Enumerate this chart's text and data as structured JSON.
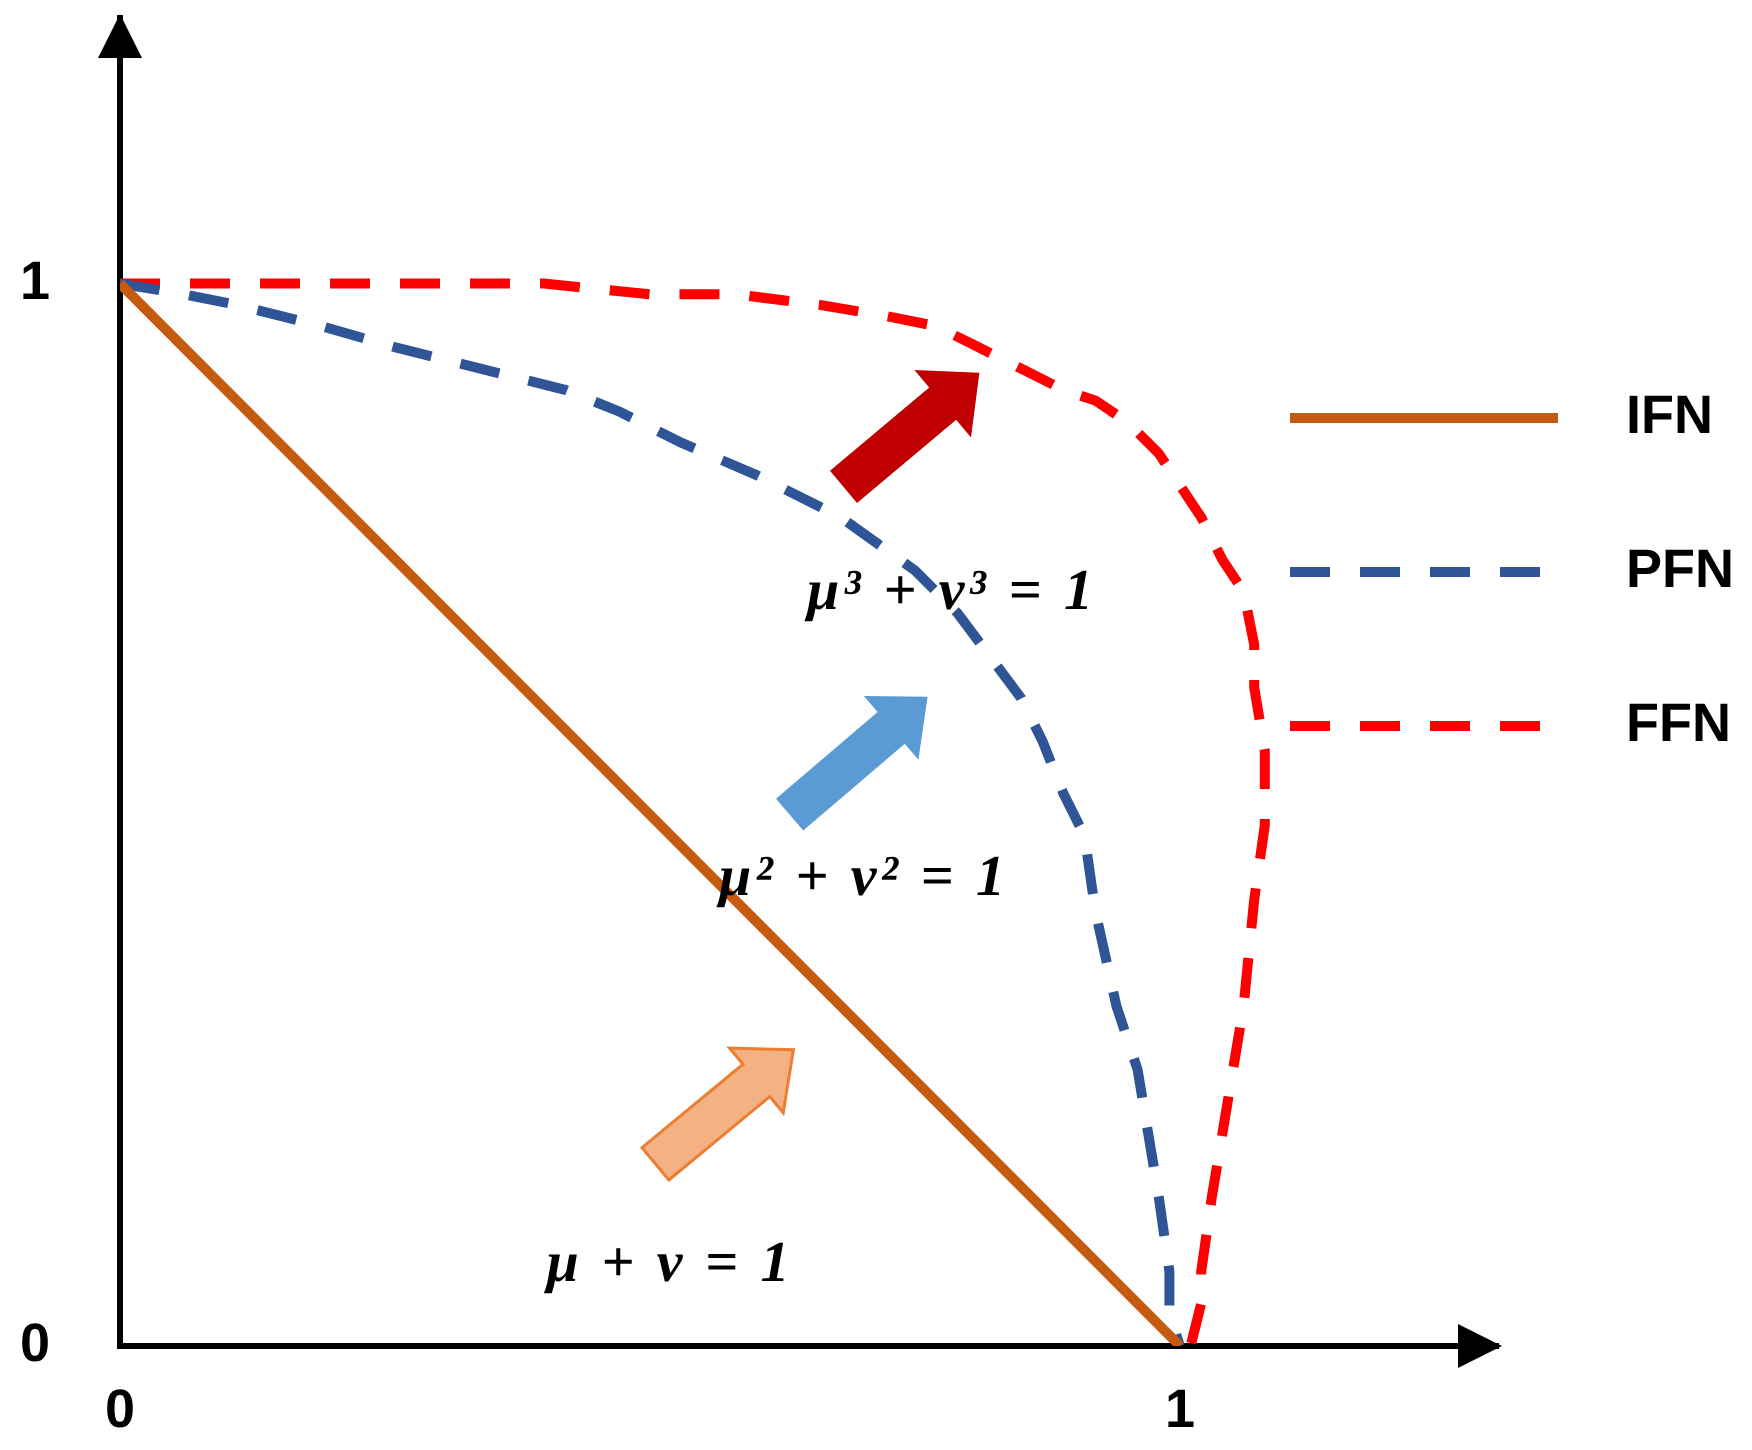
{
  "chart_data": {
    "type": "line",
    "series": [
      {
        "name": "IFN",
        "color": "#c55a11",
        "line_style": "solid",
        "x": [
          0,
          1
        ],
        "values": [
          1,
          0
        ]
      },
      {
        "name": "PFN",
        "color": "#2f5597",
        "line_style": "dashed",
        "x": [
          0,
          0.06,
          0.11,
          0.19,
          0.26,
          0.34,
          0.42,
          0.47,
          0.53,
          0.6,
          0.68,
          0.75,
          0.79,
          0.82,
          0.85,
          0.87,
          0.89,
          0.91,
          0.92,
          0.94,
          0.96,
          0.97,
          0.98,
          0.99,
          0.99,
          1.0
        ],
        "values": [
          1,
          0.99,
          0.98,
          0.96,
          0.94,
          0.92,
          0.9,
          0.88,
          0.85,
          0.82,
          0.78,
          0.73,
          0.69,
          0.65,
          0.61,
          0.57,
          0.52,
          0.48,
          0.41,
          0.32,
          0.26,
          0.2,
          0.14,
          0.07,
          0.03,
          0
        ]
      },
      {
        "name": "FFN",
        "color": "#ff0000",
        "line_style": "dashed",
        "x": [
          0,
          0.1,
          0.2,
          0.3,
          0.4,
          0.5,
          0.58,
          0.66,
          0.72,
          0.77,
          0.81,
          0.85,
          0.89,
          0.92,
          0.95,
          0.98,
          1.0,
          1.02,
          1.04,
          1.06,
          1.07,
          1.07,
          1.08,
          1.08,
          1.07,
          1.06,
          1.05,
          1.04,
          1.03,
          1.02,
          1.02,
          1.01
        ],
        "values": [
          1,
          1.0,
          1.0,
          1.0,
          1.0,
          0.99,
          0.99,
          0.98,
          0.97,
          0.96,
          0.94,
          0.92,
          0.9,
          0.89,
          0.87,
          0.84,
          0.81,
          0.78,
          0.74,
          0.71,
          0.66,
          0.62,
          0.56,
          0.49,
          0.42,
          0.32,
          0.26,
          0.2,
          0.14,
          0.07,
          0.04,
          0
        ]
      }
    ],
    "xlim": [
      0,
      1.3
    ],
    "ylim": [
      0,
      1.25
    ],
    "xticks": [
      0,
      1
    ],
    "yticks": [
      0,
      1
    ],
    "legend": "right",
    "marker": "none",
    "annotations": [
      "μ + ν = 1",
      "μ² + ν² = 1",
      "μ³ + ν³ = 1"
    ]
  }
}
